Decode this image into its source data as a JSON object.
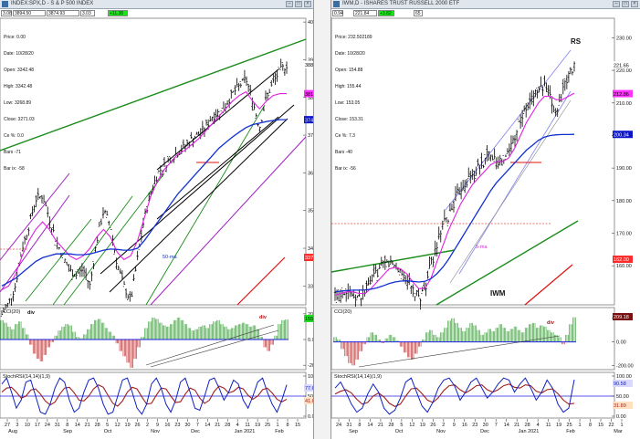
{
  "colors": {
    "price_bar": "#000000",
    "channel": "#000000",
    "trend_green": "#1a8c1a",
    "trend_purple": "#a020c0",
    "ma_blue": "#1030d0",
    "ma_magenta": "#e020e0",
    "red_line": "#e01010",
    "pink_dash": "#e05050",
    "cci_up": "#2a9a2a",
    "cci_down": "#c02020",
    "stoch_blue": "#1020c0",
    "stoch_red": "#a02020",
    "zero_line": "#2020e0",
    "tag_price": "#000000",
    "tag_magenta": "#ff33ff",
    "tag_blue": "#0a14c8",
    "tag_red": "#ff2a2a",
    "tag_green": "#22dd22"
  },
  "left_window": {
    "title": "INDEX:SPX,D - S & P 500 INDEX",
    "toolbar": {
      "field1": "3.08",
      "field2": "3894.50",
      "field3": "3874.93",
      "field4": "3.03",
      "field5": "+11.38"
    },
    "info": {
      "price": "Price: 0.00",
      "date": "Date: 10/28/20",
      "open": "Open: 3342.48",
      "high": "High: 3342.48",
      "low": "Low: 3268.89",
      "close": "Close: 3271.03",
      "ce": "Ce %: 0.0",
      "bars": "Bars -71",
      "bar_ix": "Bar ix: -58"
    }
  },
  "right_window": {
    "title": "IWM,D - ISHARES TRUST RUSSELL 2000 ETF",
    "toolbar": {
      "field1": "0.94",
      "field2": "221.84",
      "field3": "+3.82",
      "field4": "65"
    },
    "info": {
      "price": "Price: 232.502189",
      "date": "Date: 10/28/20",
      "open": "Open: 154.88",
      "high": "High: 155.44",
      "low": "Low: 153.05",
      "close": "Close: 153.31",
      "ce": "Ce %: 7.3",
      "bars": "Bars -40",
      "bar_ix": "Bar ix: -56"
    }
  },
  "chart_data": [
    {
      "type": "candlestick",
      "symbol": "INDEX:SPX",
      "panel": "price",
      "y_ticks": [
        "4000.00",
        "3900.00",
        "3800.00",
        "3700.00",
        "3600.00",
        "3500.00",
        "3400.00",
        "3300.00"
      ],
      "ylim": [
        3250,
        4010
      ],
      "tags": {
        "last": "3886.83",
        "ma_magenta": "3810.10",
        "ma_blue": "3741.04",
        "red_line": "3375.75"
      },
      "ma_label": "50-ma",
      "close_path": [
        3225,
        3255,
        3300,
        3400,
        3460,
        3530,
        3540,
        3480,
        3420,
        3380,
        3340,
        3330,
        3345,
        3300,
        3420,
        3500,
        3460,
        3360,
        3300,
        3260,
        3370,
        3480,
        3550,
        3600,
        3620,
        3640,
        3655,
        3670,
        3690,
        3700,
        3720,
        3750,
        3760,
        3780,
        3810,
        3830,
        3850,
        3790,
        3720,
        3800,
        3840,
        3870,
        3887
      ],
      "ma_magenta": [
        3290,
        3300,
        3330,
        3380,
        3420,
        3450,
        3470,
        3450,
        3420,
        3400,
        3380,
        3370,
        3380,
        3400,
        3430,
        3450,
        3430,
        3390,
        3370,
        3380,
        3420,
        3480,
        3540,
        3580,
        3610,
        3630,
        3650,
        3660,
        3675,
        3690,
        3710,
        3730,
        3750,
        3770,
        3790,
        3805,
        3815,
        3790,
        3770,
        3790,
        3805,
        3810,
        3810
      ],
      "ma_blue": [
        3300,
        3310,
        3320,
        3335,
        3350,
        3365,
        3375,
        3380,
        3385,
        3385,
        3385,
        3383,
        3383,
        3385,
        3390,
        3395,
        3398,
        3397,
        3395,
        3395,
        3400,
        3420,
        3445,
        3470,
        3495,
        3520,
        3545,
        3565,
        3585,
        3605,
        3625,
        3645,
        3665,
        3680,
        3695,
        3708,
        3720,
        3728,
        3732,
        3736,
        3739,
        3741,
        3741
      ]
    },
    {
      "type": "bar",
      "symbol": "INDEX:SPX",
      "panel": "CCI(20)",
      "y_ticks": [
        "200.00",
        "0.00",
        "-200.00"
      ],
      "ylim": [
        -220,
        220
      ],
      "tag_last": "155.13",
      "annotations": [
        "div",
        "div"
      ],
      "values": [
        150,
        130,
        100,
        80,
        120,
        140,
        90,
        40,
        -40,
        -110,
        -150,
        -170,
        -120,
        -60,
        -20,
        30,
        70,
        100,
        120,
        110,
        60,
        20,
        10,
        40,
        80,
        120,
        150,
        160,
        130,
        90,
        60,
        30,
        -30,
        -90,
        -130,
        -180,
        -220,
        -150,
        -60,
        20,
        90,
        140,
        170,
        160,
        130,
        110,
        100,
        120,
        150,
        170,
        150,
        120,
        90,
        70,
        80,
        100,
        110,
        90,
        120,
        140,
        150,
        120,
        100,
        80,
        90,
        110,
        120,
        130,
        120,
        100,
        110,
        80,
        20,
        -60,
        -90,
        -40,
        30,
        120,
        150,
        155
      ]
    },
    {
      "type": "line",
      "symbol": "INDEX:SPX",
      "panel": "StochRSI(14,14)(1,9)",
      "y_ticks": [
        "100.00",
        "50.00",
        "0.00"
      ],
      "ylim": [
        0,
        100
      ],
      "tags": {
        "blue": "77.65",
        "red": "41.68"
      },
      "series": [
        {
          "values": [
            80,
            95,
            60,
            20,
            40,
            85,
            90,
            50,
            10,
            5,
            30,
            70,
            95,
            85,
            40,
            10,
            20,
            60,
            90,
            95,
            70,
            30,
            5,
            10,
            50,
            90,
            95,
            60,
            20,
            5,
            30,
            80,
            95,
            70,
            30,
            10,
            40,
            85,
            95,
            60,
            20,
            15,
            50,
            90,
            95,
            70,
            40,
            60,
            90,
            80,
            40,
            20,
            50,
            85,
            95,
            60,
            30,
            10,
            40,
            78
          ]
        },
        {
          "values": [
            60,
            70,
            72,
            60,
            45,
            50,
            65,
            68,
            55,
            38,
            28,
            35,
            55,
            70,
            72,
            58,
            40,
            38,
            50,
            68,
            78,
            72,
            52,
            32,
            25,
            38,
            60,
            72,
            68,
            48,
            30,
            32,
            52,
            70,
            68,
            50,
            34,
            36,
            55,
            70,
            65,
            45,
            32,
            40,
            62,
            75,
            70,
            58,
            62,
            72,
            68,
            52,
            42,
            50,
            66,
            70,
            58,
            42,
            36,
            42
          ]
        }
      ]
    },
    {
      "type": "candlestick",
      "symbol": "IWM",
      "panel": "price",
      "y_ticks": [
        "230.00",
        "220.00",
        "210.00",
        "200.00",
        "190.00",
        "180.00",
        "170.00",
        "160.00"
      ],
      "ylim": [
        148,
        236
      ],
      "tags": {
        "last": "221.65",
        "ma_magenta": "212.86",
        "ma_blue": "200.34",
        "red_line": "162.00"
      },
      "labels": [
        "RS",
        "IWM",
        "5-ma"
      ],
      "close_path": [
        151,
        152,
        153,
        151,
        150,
        152,
        155,
        158,
        160,
        161,
        160,
        158,
        156,
        152,
        150,
        153,
        160,
        166,
        172,
        175,
        180,
        184,
        186,
        188,
        190,
        192,
        195,
        193,
        191,
        195,
        200,
        205,
        208,
        212,
        214,
        215,
        211,
        207,
        213,
        218,
        222
      ],
      "ma_magenta": [
        151,
        151.5,
        152,
        152,
        151.5,
        151.5,
        153,
        155,
        157,
        159,
        159.5,
        159,
        157.5,
        155,
        153,
        153,
        156,
        161,
        166,
        171,
        175,
        179,
        182,
        185,
        187,
        189,
        191,
        192,
        192,
        193,
        196,
        200,
        204,
        207,
        210,
        212,
        212,
        211,
        211,
        212,
        213
      ],
      "ma_blue": [
        152,
        152.2,
        152.4,
        152.5,
        152.5,
        152.6,
        152.8,
        153.2,
        153.8,
        154.5,
        155,
        155.3,
        155.4,
        155.2,
        155,
        155.2,
        156,
        157.5,
        159.5,
        162,
        165,
        168,
        171,
        174,
        177,
        180,
        183,
        185.5,
        187.5,
        189.5,
        191.5,
        193.5,
        195.5,
        197,
        198.5,
        199.5,
        200,
        200.2,
        200.3,
        200.3,
        200.34
      ]
    },
    {
      "type": "bar",
      "symbol": "IWM",
      "panel": "CCI(20)",
      "y_ticks": [
        "200.00",
        "0.00",
        "-200.00"
      ],
      "ylim": [
        -220,
        260
      ],
      "tag_last": "209.18",
      "annotations": [
        "div"
      ],
      "values": [
        40,
        20,
        -60,
        -120,
        -180,
        -200,
        -150,
        -80,
        -20,
        40,
        80,
        60,
        20,
        -10,
        30,
        60,
        40,
        10,
        -40,
        -90,
        -130,
        -150,
        -100,
        -40,
        20,
        80,
        100,
        60,
        40,
        80,
        120,
        180,
        200,
        160,
        120,
        90,
        120,
        160,
        140,
        100,
        60,
        80,
        110,
        90,
        120,
        150,
        120,
        90,
        110,
        130,
        100,
        80,
        120,
        150,
        160,
        120,
        140,
        130,
        100,
        80,
        60,
        40,
        -20,
        60,
        150,
        209
      ]
    },
    {
      "type": "line",
      "symbol": "IWM",
      "panel": "StochRSI(14,14)(1,9)",
      "y_ticks": [
        "100.00",
        "50.00",
        "0.00"
      ],
      "ylim": [
        0,
        100
      ],
      "tags": {
        "blue": "90.58",
        "red": "31.89"
      },
      "series": [
        {
          "values": [
            70,
            85,
            60,
            30,
            10,
            20,
            55,
            80,
            60,
            20,
            5,
            15,
            45,
            85,
            95,
            60,
            25,
            10,
            35,
            70,
            90,
            95,
            75,
            40,
            60,
            85,
            95,
            70,
            45,
            60,
            80,
            95,
            90,
            60,
            80,
            95,
            70,
            40,
            60,
            90,
            70,
            30,
            10,
            20,
            91
          ]
        },
        {
          "values": [
            55,
            62,
            66,
            58,
            42,
            30,
            34,
            50,
            58,
            48,
            32,
            24,
            30,
            50,
            68,
            70,
            56,
            40,
            34,
            46,
            64,
            76,
            78,
            66,
            58,
            66,
            76,
            78,
            66,
            60,
            66,
            76,
            80,
            72,
            70,
            78,
            76,
            62,
            58,
            66,
            68,
            56,
            40,
            30,
            32
          ]
        }
      ]
    }
  ],
  "x_axis_left": [
    "27",
    "3",
    "10",
    "17",
    "24",
    "31",
    "8",
    "14",
    "21",
    "28",
    "5",
    "12",
    "19",
    "26",
    "2",
    "9",
    "16",
    "23",
    "30",
    "7",
    "14",
    "21",
    "28",
    "4",
    "11",
    "19",
    "25",
    "1",
    "8",
    "15"
  ],
  "x_axis_left_months": [
    "Aug",
    "Sep",
    "Oct",
    "Nov",
    "Dec",
    "Jan 2021",
    "Feb"
  ],
  "x_axis_right": [
    "24",
    "31",
    "8",
    "14",
    "21",
    "28",
    "5",
    "12",
    "19",
    "26",
    "2",
    "9",
    "16",
    "23",
    "30",
    "7",
    "14",
    "21",
    "28",
    "4",
    "11",
    "19",
    "25",
    "1",
    "8",
    "15",
    "22",
    "1"
  ],
  "x_axis_right_months": [
    "Sep",
    "Oct",
    "Nov",
    "Dec",
    "Jan 2021",
    "Feb",
    "Mar"
  ]
}
